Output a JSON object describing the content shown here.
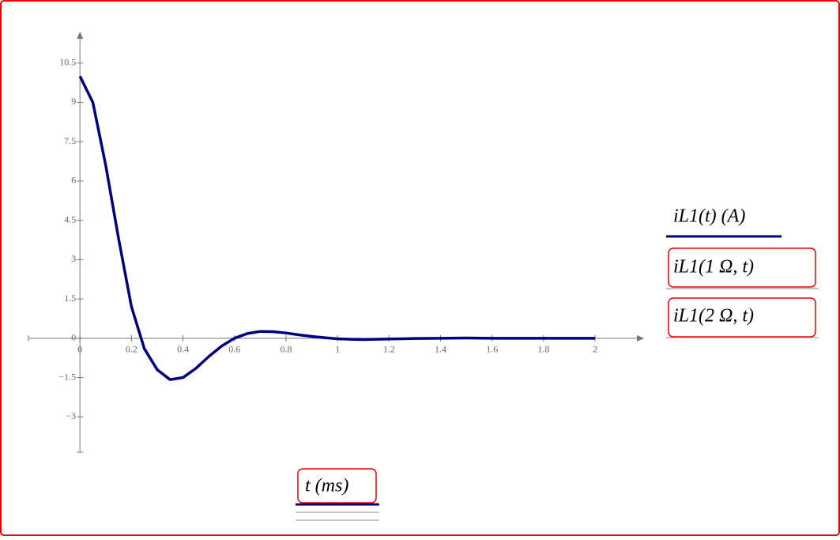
{
  "chart_data": {
    "type": "line",
    "y_axis_label": "iL1(t)  (A)",
    "y_expressions": [
      "iL1(1 Ω, t)",
      "iL1(2 Ω, t)"
    ],
    "x_axis_label": "t  (ms)",
    "x": [
      0,
      0.05,
      0.1,
      0.15,
      0.2,
      0.25,
      0.3,
      0.35,
      0.4,
      0.45,
      0.5,
      0.55,
      0.6,
      0.65,
      0.7,
      0.75,
      0.8,
      0.85,
      0.9,
      0.95,
      1.0,
      1.05,
      1.1,
      1.15,
      1.2,
      1.3,
      1.4,
      1.5,
      1.6,
      1.8,
      2.0
    ],
    "series": [
      {
        "name": "iL1(1 Ω, t)",
        "color": "#00007f",
        "values": [
          10,
          9.0,
          6.6,
          3.8,
          1.2,
          -0.4,
          -1.2,
          -1.58,
          -1.5,
          -1.15,
          -0.7,
          -0.3,
          0.0,
          0.18,
          0.26,
          0.25,
          0.2,
          0.13,
          0.07,
          0.02,
          -0.02,
          -0.04,
          -0.05,
          -0.04,
          -0.03,
          -0.01,
          0.0,
          0.01,
          0.0,
          0.0,
          0.0
        ]
      }
    ],
    "xlim": [
      -0.2,
      2.19
    ],
    "ylim": [
      -4.35,
      11.7
    ],
    "xticks": [
      0,
      0.2,
      0.4,
      0.6,
      0.8,
      1,
      1.2,
      1.4,
      1.6,
      1.8,
      2
    ],
    "yticks": [
      {
        "value": -3,
        "label": "−3"
      },
      {
        "value": -1.5,
        "label": "−1.5"
      },
      0,
      1.5,
      3,
      4.5,
      6,
      7.5,
      9,
      10.5
    ]
  }
}
